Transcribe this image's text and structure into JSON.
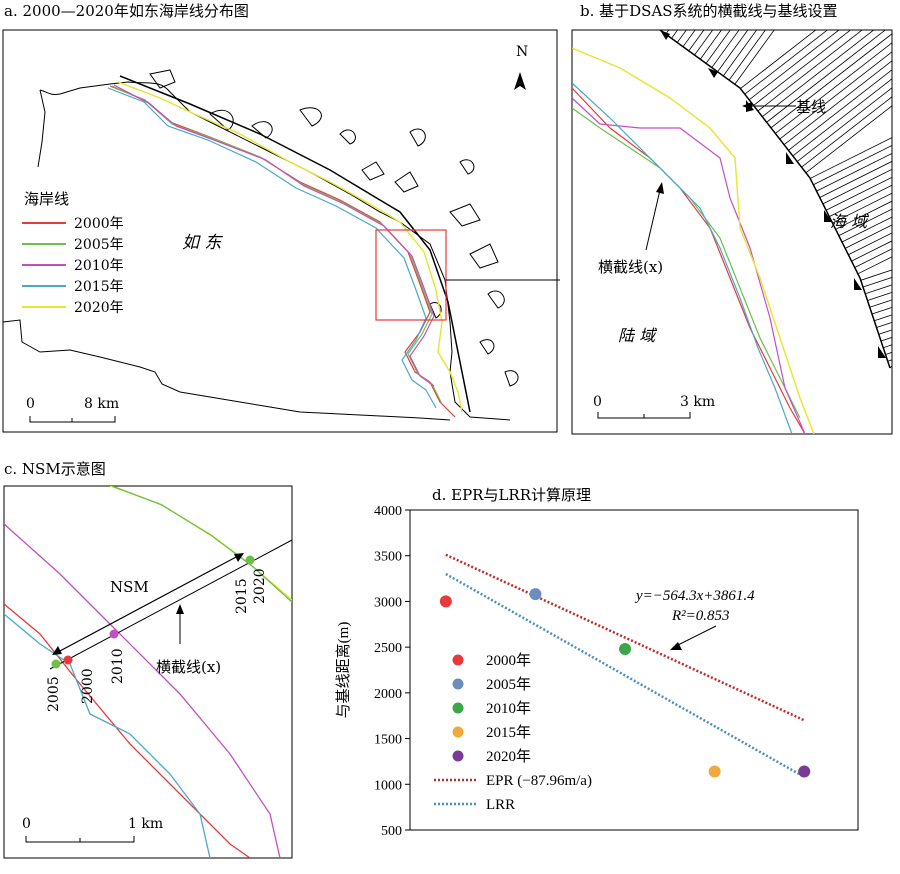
{
  "panel_a": {
    "title": "a. 2000—2020年如东海岸线分布图",
    "place_label": "如 东",
    "north_label": "N",
    "legend_title": "海岸线",
    "legend": [
      {
        "label": "2000年",
        "color": "#e83a3a"
      },
      {
        "label": "2005年",
        "color": "#6cc04a"
      },
      {
        "label": "2010年",
        "color": "#c24fc2"
      },
      {
        "label": "2015年",
        "color": "#4aa8c9"
      },
      {
        "label": "2020年",
        "color": "#e7e52d"
      }
    ],
    "scale": {
      "start": "0",
      "end": "8 km"
    }
  },
  "panel_b": {
    "title": "b. 基于DSAS系统的横截线与基线设置",
    "baseline_label": "基线",
    "transect_label": "横截线(x)",
    "sea_label": "海 域",
    "land_label": "陆 域",
    "scale": {
      "start": "0",
      "end": "3 km"
    }
  },
  "panel_c": {
    "title": "c. NSM示意图",
    "nsm_label": "NSM",
    "transect_label": "横截线(x)",
    "year_labels": [
      "2005",
      "2000",
      "2010",
      "2015",
      "2020"
    ],
    "scale": {
      "start": "0",
      "end": "1 km"
    }
  },
  "chart_data": {
    "type": "scatter",
    "title": "d. EPR与LRR计算原理",
    "ylabel": "与基线距离(m)",
    "ylim": [
      500,
      4000
    ],
    "yticks": [
      500,
      1000,
      1500,
      2000,
      2500,
      3000,
      3500,
      4000
    ],
    "equation": "y=−564.3x+3861.4",
    "r2": "R²=0.853",
    "points": [
      {
        "name": "2000年",
        "x": 1,
        "y": 3000,
        "color": "#e83a3a"
      },
      {
        "name": "2005年",
        "x": 2,
        "y": 3080,
        "color": "#6c8ebf"
      },
      {
        "name": "2010年",
        "x": 3,
        "y": 2480,
        "color": "#3aa848"
      },
      {
        "name": "2015年",
        "x": 4,
        "y": 1140,
        "color": "#f2a93b"
      },
      {
        "name": "2020年",
        "x": 5,
        "y": 1140,
        "color": "#7b3a96"
      }
    ],
    "lines": [
      {
        "name": "EPR (−87.96m/a)",
        "color": "#c22a2a",
        "x1": 1,
        "y1": 3510,
        "x2": 5,
        "y2": 1700
      },
      {
        "name": "LRR",
        "color": "#4a8fbf",
        "x1": 1,
        "y1": 3300,
        "x2": 5,
        "y2": 1080
      }
    ]
  }
}
